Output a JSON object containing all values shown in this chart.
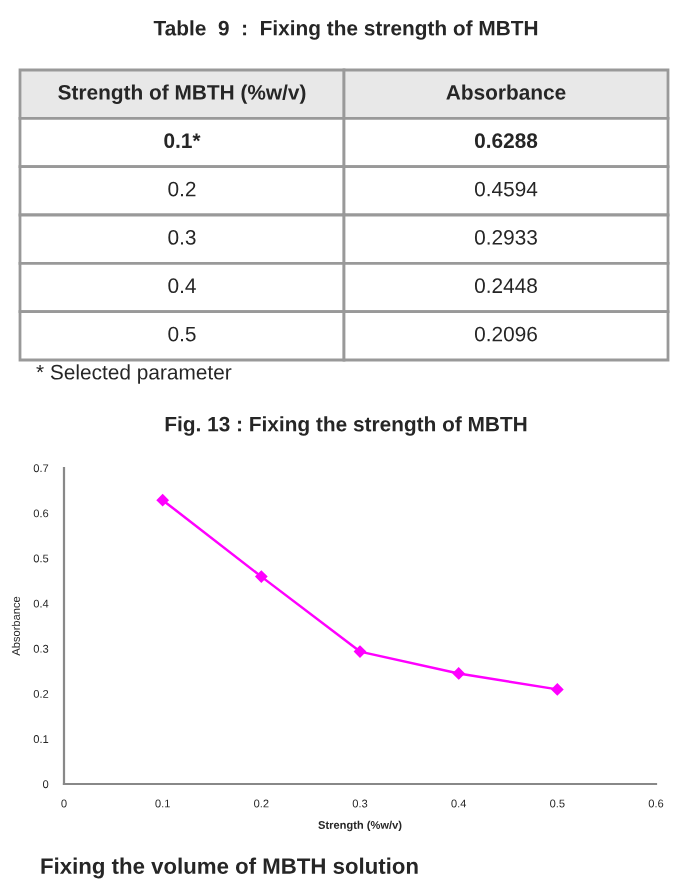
{
  "chart_data": {
    "type": "line",
    "title": "Fig. 13 : Fixing the strength of MBTH",
    "xlabel": "Strength (%w/v)",
    "ylabel": "Absorbance",
    "x": [
      0.1,
      0.2,
      0.3,
      0.4,
      0.5
    ],
    "series": [
      {
        "color": "#ff00ff",
        "values": [
          0.6288,
          0.4594,
          0.2933,
          0.2448,
          0.2096
        ]
      }
    ],
    "value_labels": [
      "0.6288",
      "0.4594",
      "0.2933",
      "0.2448",
      "0.2096"
    ],
    "xlim": [
      0,
      0.6
    ],
    "xticks": [
      0,
      0.1,
      0.2,
      0.3,
      0.4,
      0.5,
      0.6
    ],
    "ylim": [
      0,
      0.7
    ],
    "yticks": [
      0,
      0.1,
      0.2,
      0.3,
      0.4,
      0.5,
      0.6,
      0.7
    ],
    "marker": "diamond",
    "line_style": "solid",
    "grid": false,
    "legend": false,
    "annotations": [
      "Table  9  :  Fixing the strength of MBTH",
      "Strength of MBTH (%w/v)",
      "Absorbance",
      "0.1*",
      "0.2",
      "0.3",
      "0.4",
      "0.5",
      "* Selected parameter",
      "Fixing the volume of MBTH solution"
    ]
  }
}
